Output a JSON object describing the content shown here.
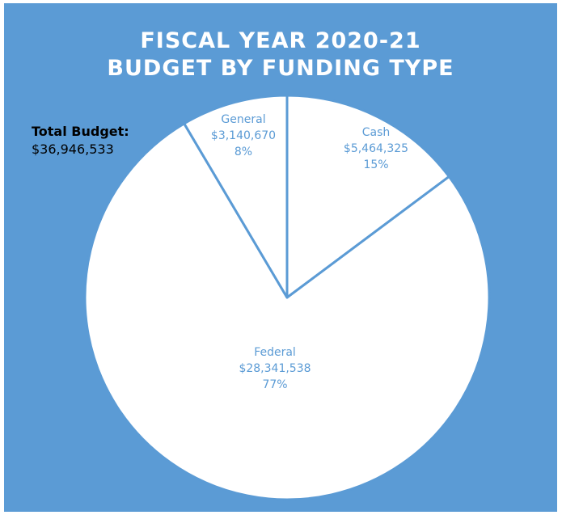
{
  "chart_data": {
    "type": "pie",
    "title": [
      "FISCAL YEAR 2020-21",
      "BUDGET BY FUNDING TYPE"
    ],
    "total_label": "Total Budget:",
    "total_value": "$36,946,533",
    "slices": [
      {
        "name": "Cash",
        "value": 5464325,
        "value_label": "$5,464,325",
        "percent_label": "15%"
      },
      {
        "name": "Federal",
        "value": 28341538,
        "value_label": "$28,341,538",
        "percent_label": "77%"
      },
      {
        "name": "General",
        "value": 3140670,
        "value_label": "$3,140,670",
        "percent_label": "8%"
      }
    ]
  },
  "colors": {
    "background": "#5b9bd5",
    "slice_fill": "#ffffff",
    "slice_border": "#5b9bd5",
    "label_text": "#5b9bd5"
  }
}
